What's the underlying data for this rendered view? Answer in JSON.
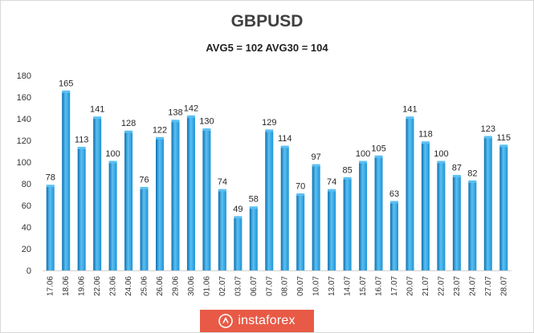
{
  "chart_data": {
    "type": "bar",
    "title": "GBPUSD",
    "subtitle": "AVG5 = 102 AVG30 = 104",
    "categories": [
      "17.06",
      "18.06",
      "19.06",
      "22.06",
      "23.06",
      "24.06",
      "25.06",
      "26.06",
      "29.06",
      "30.06",
      "01.06",
      "02.07",
      "03.07",
      "06.07",
      "07.07",
      "08.07",
      "09.07",
      "10.07",
      "13.07",
      "14.07",
      "15.07",
      "16.07",
      "17.07",
      "20.07",
      "21.07",
      "22.07",
      "23.07",
      "24.07",
      "27.07",
      "28.07"
    ],
    "values": [
      78,
      165,
      113,
      141,
      100,
      128,
      76,
      122,
      138,
      142,
      130,
      74,
      49,
      58,
      129,
      114,
      70,
      97,
      74,
      85,
      100,
      105,
      63,
      141,
      118,
      100,
      87,
      82,
      123,
      115
    ],
    "ylim": [
      0,
      180
    ],
    "yticks": [
      0,
      20,
      40,
      60,
      80,
      100,
      120,
      140,
      160,
      180
    ],
    "grid": false,
    "legend": "none",
    "bar_color": "#1e93d6",
    "bar_color_light": "#5cc0f2",
    "bar_color_dark": "#0b6fb0"
  },
  "watermark": {
    "text": "instaforex",
    "color": "#e85a46"
  }
}
